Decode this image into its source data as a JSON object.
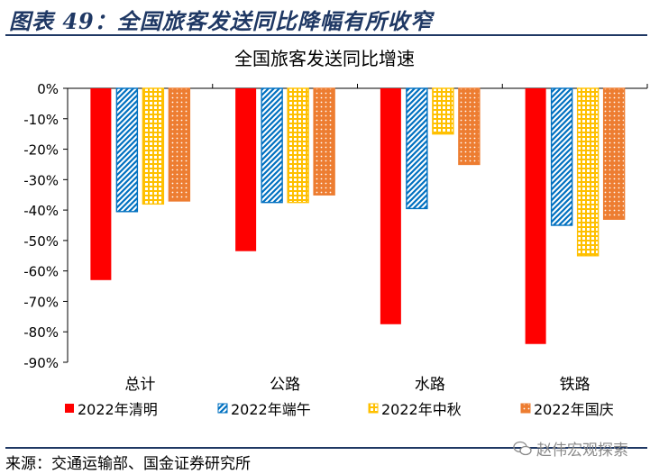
{
  "header": {
    "title": "图表 49：全国旅客发送同比降幅有所收窄"
  },
  "footer": {
    "source": "来源：交通运输部、国金证券研究所",
    "watermark": "赵伟宏观探索"
  },
  "colors": {
    "red": "#ff0000",
    "blue": "#0070c0",
    "yellow": "#ffc000",
    "orange": "#ed7d31",
    "title_blue": "#1f3864"
  },
  "chart_data": {
    "type": "bar",
    "title": "全国旅客发送同比增速",
    "categories": [
      "总计",
      "公路",
      "水路",
      "铁路"
    ],
    "series": [
      {
        "name": "2022年清明",
        "color": "#ff0000",
        "pattern": "solid",
        "values": [
          -63,
          -53.5,
          -77.5,
          -84
        ]
      },
      {
        "name": "2022年端午",
        "color": "#0070c0",
        "pattern": "diagonal",
        "values": [
          -40.5,
          -37.5,
          -39.5,
          -45
        ]
      },
      {
        "name": "2022年中秋",
        "color": "#ffc000",
        "pattern": "grid",
        "values": [
          -38,
          -37.5,
          -15,
          -55
        ]
      },
      {
        "name": "2022年国庆",
        "color": "#ed7d31",
        "pattern": "dots",
        "values": [
          -37,
          -35,
          -25,
          -43
        ]
      }
    ],
    "yticks": [
      "0%",
      "-10%",
      "-20%",
      "-30%",
      "-40%",
      "-50%",
      "-60%",
      "-70%",
      "-80%",
      "-90%"
    ],
    "ylim": [
      -90,
      0
    ],
    "legend_position": "bottom",
    "grid": false
  }
}
